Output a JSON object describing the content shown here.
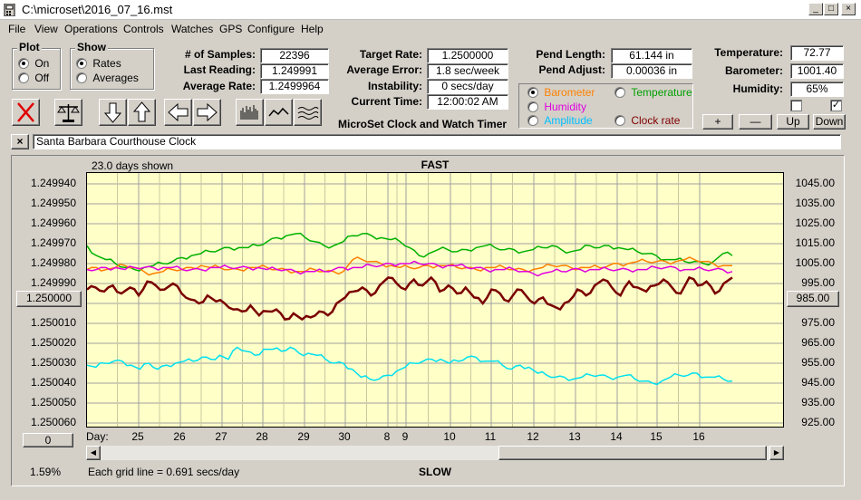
{
  "window": {
    "title": "C:\\microset\\2016_07_16.mst"
  },
  "menu": [
    "File",
    "View",
    "Operations",
    "Controls",
    "Watches",
    "GPS",
    "Configure",
    "Help"
  ],
  "plot_group": {
    "label": "Plot",
    "options": [
      "On",
      "Off"
    ],
    "selected": "On"
  },
  "show_group": {
    "label": "Show",
    "options": [
      "Rates",
      "Averages"
    ],
    "selected": "Rates"
  },
  "stats": {
    "samples_label": "# of Samples:",
    "samples": "22396",
    "last_label": "Last Reading:",
    "last": "1.249991",
    "avg_label": "Average Rate:",
    "avg": "1.2499964"
  },
  "target": {
    "target_label": "Target Rate:",
    "target": "1.2500000",
    "error_label": "Average Error:",
    "error": "1.8 sec/week",
    "instab_label": "Instability:",
    "instab": "0 secs/day",
    "time_label": "Current Time:",
    "time": "12:00:02 AM",
    "app_name": "MicroSet Clock and Watch Timer"
  },
  "pend": {
    "length_label": "Pend Length:",
    "length": "61.144 in",
    "adjust_label": "Pend Adjust:",
    "adjust": "0.00036 in"
  },
  "secondary": {
    "options": [
      {
        "label": "Barometer",
        "color": "#ff8000",
        "selected": true
      },
      {
        "label": "Temperature",
        "color": "#00a000",
        "selected": false
      },
      {
        "label": "Humidity",
        "color": "#e000e0",
        "selected": false
      },
      {
        "label": "Amplitude",
        "color": "#00c0ff",
        "selected": false
      },
      {
        "label": "Clock rate",
        "color": "#800000",
        "selected": false
      }
    ]
  },
  "env": {
    "temp_label": "Temperature:",
    "temp": "72.77",
    "baro_label": "Barometer:",
    "baro": "1001.40",
    "hum_label": "Humidity:",
    "hum": "65%",
    "check1": false,
    "check2": true
  },
  "scale_buttons": [
    "+",
    "—",
    "Up",
    "Down"
  ],
  "watch_name": "Santa Barbara Courthouse Clock",
  "chart_header": {
    "days_shown": "23.0 days shown",
    "top": "FAST",
    "bottom": "SLOW"
  },
  "left_center_btn": "1.250000",
  "right_center_btn": "985.00",
  "offset_btn": "0",
  "percent": "1.59%",
  "grid_note": "Each grid line = 0.691 secs/day",
  "day_label": "Day:",
  "chart_data": {
    "type": "line",
    "x_ticks": [
      "25",
      "26",
      "27",
      "28",
      "29",
      "30",
      "8",
      "9",
      "10",
      "11",
      "12",
      "13",
      "14",
      "15",
      "16"
    ],
    "y_left_ticks": [
      "1.249940",
      "1.249950",
      "1.249960",
      "1.249970",
      "1.249980",
      "1.249990",
      "",
      "1.250010",
      "1.250020",
      "1.250030",
      "1.250040",
      "1.250050",
      "1.250060"
    ],
    "y_right_ticks": [
      "1045.00",
      "1035.00",
      "1025.00",
      "1015.00",
      "1005.00",
      "995.00",
      "",
      "975.00",
      "965.00",
      "955.00",
      "945.00",
      "935.00",
      "925.00"
    ],
    "ylim_left": [
      1.25006,
      1.24994
    ],
    "ylim_right": [
      925,
      1045
    ],
    "grid": true,
    "series": [
      {
        "color": "#00b000",
        "y": [
          1014,
          1009,
          1007,
          1005,
          1003,
          1002,
          1003,
          1004,
          1005,
          1006,
          1008,
          1009,
          1010,
          1011,
          1012,
          1013,
          1013,
          1013,
          1014,
          1016,
          1018,
          1019,
          1020,
          1018,
          1016,
          1014,
          1014,
          1016,
          1019,
          1020,
          1019,
          1018,
          1017,
          1016,
          1013,
          1009,
          1010,
          1012,
          1012,
          1011,
          1012,
          1013,
          1014,
          1013,
          1012,
          1012,
          1011,
          1012,
          1013,
          1014,
          1012,
          1011,
          1012,
          1014,
          1013,
          1014,
          1013,
          1012,
          1011,
          1010,
          1009,
          1007,
          1007,
          1006,
          1006,
          1005,
          1006,
          1010,
          1009
        ],
        "x_pos": "uniform"
      },
      {
        "color": "#ff8000",
        "y": [
          1002,
          1003,
          1002,
          1003,
          1004,
          1003,
          1001,
          1000,
          1001,
          1002,
          1002,
          1003,
          1004,
          1003,
          1003,
          1002,
          1002,
          1003,
          1003,
          1003,
          1002,
          1002,
          1001,
          1001,
          1002,
          1001,
          1001,
          1001,
          1007,
          1007,
          1006,
          1005,
          1004,
          1003,
          1003,
          1003,
          1004,
          1004,
          1004,
          1003,
          1003,
          1002,
          1003,
          1003,
          1003,
          1002,
          1002,
          1002,
          1003,
          1004,
          1004,
          1003,
          1003,
          1003,
          1003,
          1004,
          1005,
          1005,
          1006,
          1006,
          1006,
          1006,
          1006,
          1007,
          1007,
          1006,
          1005,
          1004,
          1004
        ],
        "x_pos": "uniform"
      },
      {
        "color": "#e000e0",
        "y": [
          1002,
          1002,
          1003,
          1003,
          1002,
          1003,
          1003,
          1003,
          1003,
          1003,
          1002,
          1002,
          1002,
          1003,
          1003,
          1003,
          1003,
          1003,
          1003,
          1002,
          1002,
          1002,
          1001,
          1001,
          1001,
          1001,
          1002,
          1003,
          1003,
          1003,
          1004,
          1004,
          1005,
          1005,
          1005,
          1005,
          1005,
          1004,
          1004,
          1004,
          1003,
          1003,
          1002,
          1002,
          1002,
          1002,
          1001,
          1000,
          1000,
          1001,
          1001,
          1002,
          1002,
          1002,
          1002,
          1002,
          1002,
          1002,
          1002,
          1002,
          1003,
          1003,
          1003,
          1002,
          1002,
          1002,
          1002,
          1002,
          1001
        ],
        "x_pos": "uniform"
      },
      {
        "color": "#7a0000",
        "y": [
          992,
          993,
          991,
          994,
          990,
          993,
          989,
          996,
          994,
          992,
          995,
          990,
          987,
          985,
          989,
          986,
          985,
          982,
          981,
          984,
          979,
          981,
          982,
          977,
          980,
          977,
          978,
          981,
          979,
          985,
          988,
          991,
          993,
          989,
          994,
          998,
          995,
          992,
          997,
          994,
          998,
          991,
          994,
          990,
          993,
          988,
          985,
          992,
          990,
          986,
          992,
          989,
          985,
          988,
          984,
          982,
          986,
          992,
          989,
          994,
          997,
          993,
          989,
          996,
          993,
          991,
          994,
          997,
          993,
          990,
          998,
          994,
          996,
          990,
          995,
          998
        ],
        "x_pos": "uniform"
      },
      {
        "color": "#00e0f0",
        "y": [
          954,
          953,
          955,
          956,
          956,
          954,
          952,
          955,
          952,
          954,
          955,
          956,
          956,
          958,
          957,
          959,
          957,
          963,
          961,
          959,
          962,
          962,
          961,
          963,
          960,
          960,
          959,
          957,
          955,
          955,
          952,
          948,
          947,
          947,
          949,
          951,
          953,
          955,
          956,
          957,
          957,
          955,
          956,
          958,
          958,
          956,
          956,
          954,
          952,
          954,
          953,
          950,
          949,
          948,
          948,
          947,
          948,
          949,
          949,
          948,
          948,
          949,
          947,
          946,
          945,
          946,
          948,
          949,
          949,
          950,
          948,
          948,
          947,
          946
        ],
        "x_pos": "uniform"
      }
    ]
  }
}
